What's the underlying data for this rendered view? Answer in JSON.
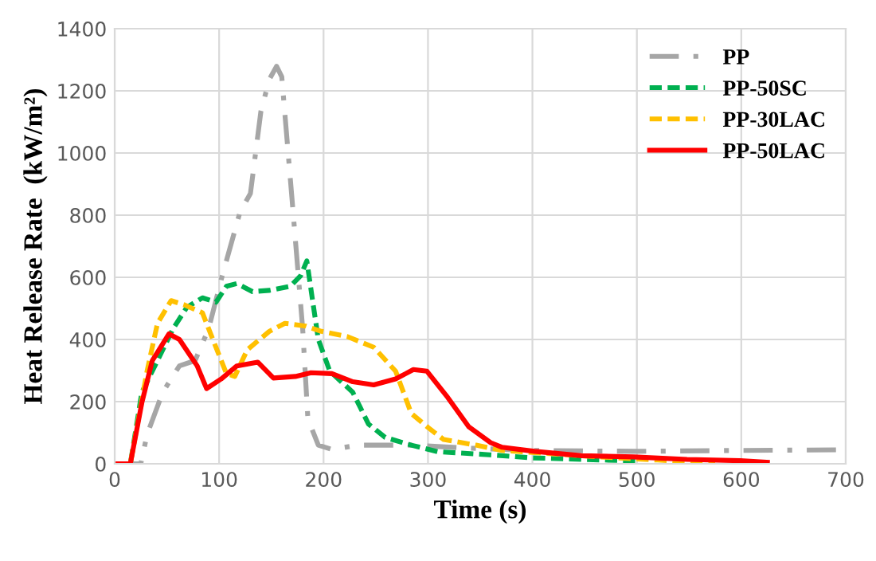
{
  "chart_data": {
    "type": "line",
    "xlabel": "Time (s)",
    "ylabel": "Heat Release Rate  (kW/m²)",
    "xlim": [
      0,
      700
    ],
    "xticks": [
      0,
      100,
      200,
      300,
      400,
      500,
      600,
      700
    ],
    "ylim": [
      0,
      1400
    ],
    "yticks": [
      0,
      200,
      400,
      600,
      800,
      1000,
      1200,
      1400
    ],
    "grid": true,
    "legend": "top right",
    "marker": "none",
    "series": [
      {
        "name": "PP",
        "color": "#a6a6a6",
        "line_style": "dashdot",
        "x": [
          0,
          25,
          31,
          46,
          62,
          77,
          90,
          103,
          120,
          130,
          140,
          148,
          155,
          160,
          170,
          180,
          185,
          195,
          208,
          233,
          284,
          334,
          400,
          500,
          600,
          700
        ],
        "values": [
          0,
          0,
          94,
          230,
          315,
          332,
          435,
          605,
          810,
          870,
          1134,
          1236,
          1279,
          1245,
          844,
          435,
          145,
          60,
          46,
          60,
          60,
          51,
          43,
          40,
          43,
          45
        ]
      },
      {
        "name": "PP-50SC",
        "color": "#00b050",
        "line_style": "dashed",
        "x": [
          0,
          15,
          26,
          41,
          56,
          69,
          84,
          97,
          107,
          117,
          132,
          148,
          168,
          178,
          184,
          189,
          195,
          206,
          228,
          243,
          259,
          284,
          309,
          359,
          400,
          500
        ],
        "values": [
          0,
          0,
          230,
          332,
          435,
          503,
          534,
          520,
          571,
          580,
          554,
          558,
          571,
          605,
          653,
          537,
          400,
          298,
          230,
          128,
          85,
          60,
          39,
          29,
          19,
          9
        ]
      },
      {
        "name": "PP-30LAC",
        "color": "#ffc000",
        "line_style": "dashed",
        "x": [
          0,
          15,
          31,
          41,
          54,
          67,
          84,
          94,
          107,
          115,
          127,
          148,
          163,
          183,
          198,
          223,
          248,
          269,
          284,
          300,
          315,
          346,
          371,
          450,
          520,
          575
        ],
        "values": [
          0,
          0,
          298,
          452,
          525,
          511,
          486,
          400,
          290,
          281,
          367,
          426,
          452,
          443,
          426,
          409,
          375,
          298,
          162,
          117,
          78,
          60,
          43,
          25,
          12,
          3
        ]
      },
      {
        "name": "PP-50LAC",
        "color": "#ff0000",
        "line_style": "solid",
        "x": [
          0,
          15,
          26,
          36,
          52,
          62,
          72,
          79,
          88,
          102,
          117,
          137,
          152,
          173,
          188,
          208,
          228,
          248,
          269,
          286,
          299,
          319,
          339,
          360,
          371,
          402,
          447,
          497,
          548,
          599,
          625
        ],
        "values": [
          0,
          0,
          196,
          332,
          418,
          400,
          350,
          315,
          242,
          273,
          315,
          327,
          276,
          281,
          293,
          290,
          264,
          254,
          273,
          303,
          298,
          213,
          119,
          68,
          53,
          40,
          26,
          22,
          14,
          10,
          5
        ]
      }
    ]
  }
}
